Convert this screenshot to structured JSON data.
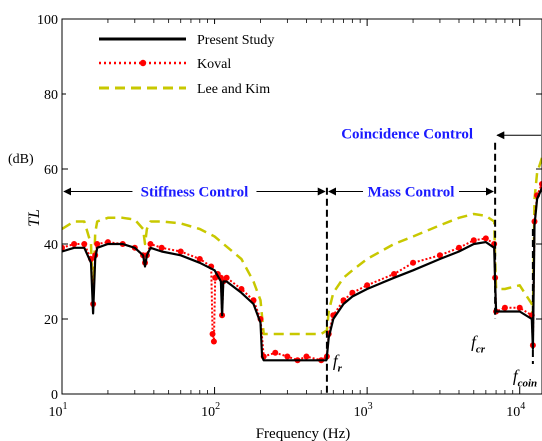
{
  "chart_data": {
    "type": "line",
    "xlabel": "Frequency (Hz)",
    "ylabel": "TL",
    "yunit": "(dB)",
    "xscale": "log",
    "xlim": [
      10,
      14000
    ],
    "ylim": [
      0,
      100
    ],
    "xticks": [
      {
        "value": 10,
        "base": "10",
        "exp": "1"
      },
      {
        "value": 100,
        "base": "10",
        "exp": "2"
      },
      {
        "value": 1000,
        "base": "10",
        "exp": "3"
      },
      {
        "value": 10000,
        "base": "10",
        "exp": "4"
      }
    ],
    "yticks": [
      0,
      20,
      40,
      60,
      80,
      100
    ],
    "legend_position": "top-left",
    "series": [
      {
        "name": "Present Study",
        "color": "#000000",
        "style": "solid",
        "x": [
          10,
          12,
          14,
          15.5,
          16,
          16.5,
          17,
          20,
          25,
          30,
          34,
          35,
          36,
          38,
          45,
          60,
          80,
          100,
          110,
          112,
          114,
          120,
          150,
          180,
          200,
          205,
          210,
          250,
          300,
          400,
          500,
          540,
          545,
          560,
          600,
          700,
          800,
          1000,
          1500,
          2000,
          3000,
          4000,
          5000,
          6000,
          6800,
          6900,
          7000,
          8000,
          10000,
          12000,
          12200,
          12500,
          13000,
          14000
        ],
        "y": [
          38,
          39,
          39,
          35,
          21.5,
          36,
          39,
          40,
          40,
          39,
          37,
          34,
          37,
          39,
          38,
          37,
          35,
          33,
          30,
          21,
          30,
          30,
          27,
          24,
          19,
          10,
          9,
          9,
          9,
          9,
          9,
          9,
          10,
          15,
          20,
          24,
          26,
          28,
          31,
          33,
          36,
          38,
          40,
          40.5,
          39,
          30,
          22,
          22,
          22,
          20,
          12,
          45,
          52,
          55
        ]
      },
      {
        "name": "Koval",
        "color": "#ff0000",
        "style": "dotted-marker",
        "x": [
          10,
          12,
          14,
          15.5,
          16,
          16.5,
          17,
          20,
          25,
          30,
          34,
          35,
          36,
          38,
          45,
          60,
          80,
          95,
          97,
          99,
          101,
          105,
          110,
          112,
          114,
          120,
          150,
          180,
          200,
          210,
          250,
          300,
          350,
          400,
          500,
          545,
          560,
          600,
          700,
          800,
          1000,
          1500,
          2000,
          3000,
          4000,
          5000,
          6000,
          6800,
          6900,
          7000,
          8000,
          10000,
          12000,
          12200,
          12500,
          13000,
          14000
        ],
        "y": [
          39,
          40,
          40,
          36,
          24,
          37,
          40,
          40.5,
          40,
          39,
          37,
          35,
          37,
          40,
          39,
          38,
          36,
          34,
          16,
          14,
          31,
          32,
          31,
          21,
          30,
          31,
          28,
          25,
          20,
          10,
          11,
          10,
          9,
          10,
          9,
          10,
          16,
          21,
          25,
          27,
          29,
          32,
          35,
          37,
          39,
          41,
          41.5,
          40,
          31,
          22,
          23,
          23,
          21,
          13,
          46,
          53,
          56
        ]
      },
      {
        "name": "Lee and Kim",
        "color": "#c8c800",
        "style": "dashed",
        "x": [
          10,
          12,
          14,
          15.5,
          16,
          16.5,
          17,
          20,
          25,
          30,
          34,
          35,
          36,
          38,
          45,
          60,
          80,
          100,
          150,
          180,
          200,
          210,
          250,
          300,
          400,
          500,
          545,
          560,
          600,
          700,
          800,
          1000,
          1500,
          2000,
          3000,
          4000,
          5000,
          6000,
          6800,
          6900,
          7000,
          8000,
          10000,
          12000,
          12200,
          12500,
          13000,
          14000
        ],
        "y": [
          44,
          46,
          46,
          40,
          25,
          43,
          46,
          47,
          47,
          46.5,
          44,
          40,
          44,
          46,
          46,
          45.5,
          44,
          42,
          36,
          30,
          25,
          16,
          16,
          16,
          16,
          16,
          17,
          22,
          27,
          31,
          33,
          36,
          40,
          42,
          45,
          47,
          48,
          47.5,
          46,
          36,
          28,
          28,
          29,
          24,
          20,
          52,
          59,
          63
        ]
      }
    ],
    "annotations": {
      "stiffness": "Stiffness Control",
      "mass": "Mass Control",
      "coincidence": "Coincidence Control",
      "fr": {
        "main": "f",
        "sub": "r"
      },
      "fcr": {
        "main": "f",
        "sub": "cr"
      },
      "fcoin": {
        "main": "f",
        "sub": "coin"
      },
      "fr_value": 545,
      "fcr_value": 6900,
      "fcoin_value": 12200
    }
  }
}
